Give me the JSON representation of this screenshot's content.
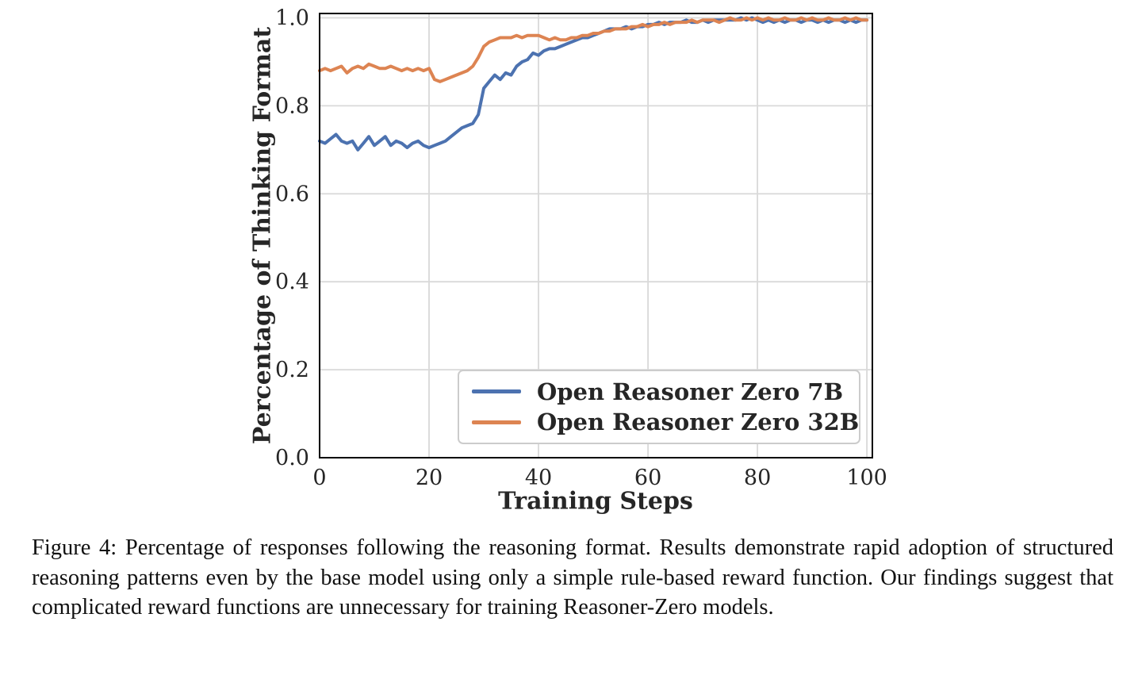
{
  "figure": {
    "caption": "Figure 4: Percentage of responses following the reasoning format. Results demonstrate rapid adoption of structured reasoning patterns even by the base model using only a simple rule-based reward function. Our findings suggest that complicated reward functions are unnecessary for training Reasoner-Zero models."
  },
  "chart_data": {
    "type": "line",
    "title": "",
    "xlabel": "Training Steps",
    "ylabel": "Percentage of Thinking Format",
    "xlim": [
      0,
      101
    ],
    "ylim": [
      0,
      1.01
    ],
    "xticks": [
      0,
      20,
      40,
      60,
      80,
      100
    ],
    "yticks": [
      0.0,
      0.2,
      0.4,
      0.6,
      0.8,
      1.0
    ],
    "grid": true,
    "grid_color": "#d9d9d9",
    "legend_position": "lower center-right inside",
    "x": [
      0,
      1,
      2,
      3,
      4,
      5,
      6,
      7,
      8,
      9,
      10,
      11,
      12,
      13,
      14,
      15,
      16,
      17,
      18,
      19,
      20,
      21,
      22,
      23,
      24,
      25,
      26,
      27,
      28,
      29,
      30,
      31,
      32,
      33,
      34,
      35,
      36,
      37,
      38,
      39,
      40,
      41,
      42,
      43,
      44,
      45,
      46,
      47,
      48,
      49,
      50,
      51,
      52,
      53,
      54,
      55,
      56,
      57,
      58,
      59,
      60,
      61,
      62,
      63,
      64,
      65,
      66,
      67,
      68,
      69,
      70,
      71,
      72,
      73,
      74,
      75,
      76,
      77,
      78,
      79,
      80,
      81,
      82,
      83,
      84,
      85,
      86,
      87,
      88,
      89,
      90,
      91,
      92,
      93,
      94,
      95,
      96,
      97,
      98,
      99,
      100
    ],
    "series": [
      {
        "name": "Open Reasoner Zero 7B",
        "color": "#4C72B0",
        "values": [
          0.72,
          0.715,
          0.725,
          0.735,
          0.72,
          0.715,
          0.72,
          0.7,
          0.715,
          0.73,
          0.71,
          0.72,
          0.73,
          0.71,
          0.72,
          0.715,
          0.705,
          0.715,
          0.72,
          0.71,
          0.705,
          0.71,
          0.715,
          0.72,
          0.73,
          0.74,
          0.75,
          0.755,
          0.76,
          0.78,
          0.84,
          0.855,
          0.87,
          0.86,
          0.875,
          0.87,
          0.89,
          0.9,
          0.905,
          0.92,
          0.915,
          0.925,
          0.93,
          0.93,
          0.935,
          0.94,
          0.945,
          0.95,
          0.955,
          0.955,
          0.96,
          0.965,
          0.97,
          0.975,
          0.975,
          0.975,
          0.98,
          0.975,
          0.98,
          0.98,
          0.985,
          0.985,
          0.99,
          0.985,
          0.99,
          0.99,
          0.99,
          0.995,
          0.99,
          0.99,
          0.995,
          0.99,
          0.995,
          0.995,
          0.995,
          0.995,
          0.995,
          1.0,
          0.995,
          1.0,
          0.995,
          0.99,
          0.995,
          0.99,
          0.995,
          0.99,
          0.995,
          0.995,
          0.99,
          0.995,
          0.995,
          0.99,
          0.995,
          0.99,
          0.995,
          0.995,
          0.99,
          0.995,
          0.99,
          0.995,
          0.995
        ]
      },
      {
        "name": "Open Reasoner Zero 32B",
        "color": "#DD8452",
        "values": [
          0.88,
          0.885,
          0.88,
          0.885,
          0.89,
          0.875,
          0.885,
          0.89,
          0.885,
          0.895,
          0.89,
          0.885,
          0.885,
          0.89,
          0.885,
          0.88,
          0.885,
          0.88,
          0.885,
          0.88,
          0.885,
          0.86,
          0.855,
          0.86,
          0.865,
          0.87,
          0.875,
          0.88,
          0.89,
          0.91,
          0.935,
          0.945,
          0.95,
          0.955,
          0.955,
          0.955,
          0.96,
          0.955,
          0.96,
          0.96,
          0.96,
          0.955,
          0.95,
          0.955,
          0.95,
          0.95,
          0.955,
          0.955,
          0.96,
          0.96,
          0.965,
          0.965,
          0.97,
          0.97,
          0.975,
          0.975,
          0.975,
          0.98,
          0.98,
          0.985,
          0.98,
          0.985,
          0.985,
          0.99,
          0.985,
          0.99,
          0.99,
          0.99,
          0.995,
          0.99,
          0.995,
          0.995,
          0.995,
          0.99,
          0.995,
          1.0,
          0.995,
          0.995,
          1.0,
          0.995,
          1.0,
          0.995,
          1.0,
          0.995,
          0.995,
          1.0,
          0.995,
          0.995,
          1.0,
          0.995,
          1.0,
          0.995,
          0.995,
          1.0,
          0.995,
          0.995,
          1.0,
          0.995,
          1.0,
          0.995,
          0.995
        ]
      }
    ]
  }
}
